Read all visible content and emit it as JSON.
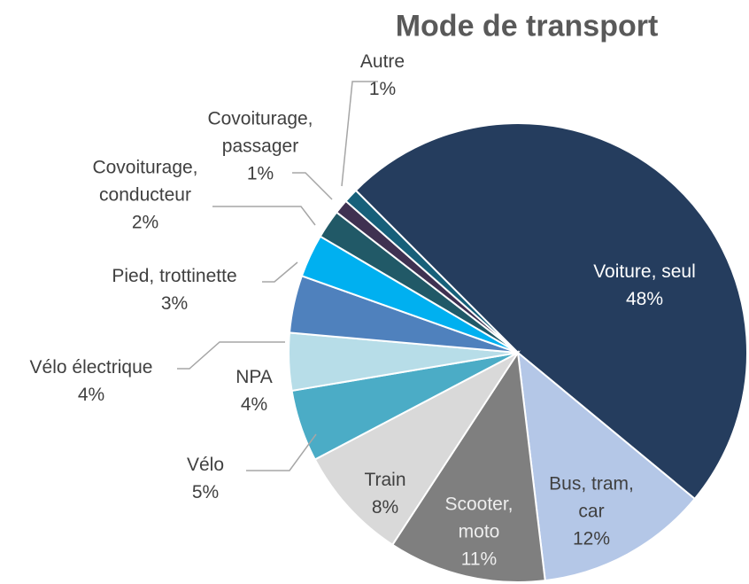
{
  "chart_data": {
    "type": "pie",
    "title": "Mode de transport",
    "categories": [
      "Voiture, seul",
      "Bus, tram, car",
      "Scooter, moto",
      "Train",
      "Vélo",
      "NPA",
      "Vélo électrique",
      "Pied, trottinette",
      "Covoiturage, conducteur",
      "Covoiturage, passager",
      "Autre"
    ],
    "values": [
      48,
      12,
      11,
      8,
      5,
      4,
      4,
      3,
      2,
      1,
      1
    ],
    "value_labels": [
      "48%",
      "12%",
      "11%",
      "8%",
      "5%",
      "4%",
      "4%",
      "3%",
      "2%",
      "1%",
      "1%"
    ],
    "colors": [
      "#253d5e",
      "#b4c7e7",
      "#7f7f7f",
      "#d9d9d9",
      "#4bacc6",
      "#b7dde8",
      "#4f81bd",
      "#00b0f0",
      "#215967",
      "#3f3151",
      "#17607a"
    ]
  }
}
